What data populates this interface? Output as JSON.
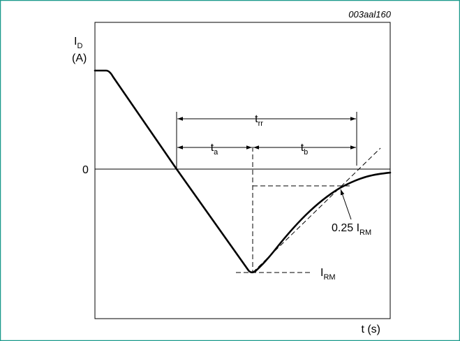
{
  "figure": {
    "reference": "003aal160",
    "frame_color": "#1b9a8c",
    "y_axis": {
      "label_main": "I",
      "label_sub": "D",
      "unit": "(A)",
      "zero_tick": "0"
    },
    "x_axis": {
      "label": "t (s)"
    },
    "annotations": {
      "trr": {
        "main": "t",
        "sub": "rr"
      },
      "ta": {
        "main": "t",
        "sub": "a"
      },
      "tb": {
        "main": "t",
        "sub": "b"
      },
      "irm": {
        "main": "I",
        "sub": "RM"
      },
      "quarter_irm": {
        "prefix": "0.25 I",
        "sub": "RM"
      }
    }
  }
}
